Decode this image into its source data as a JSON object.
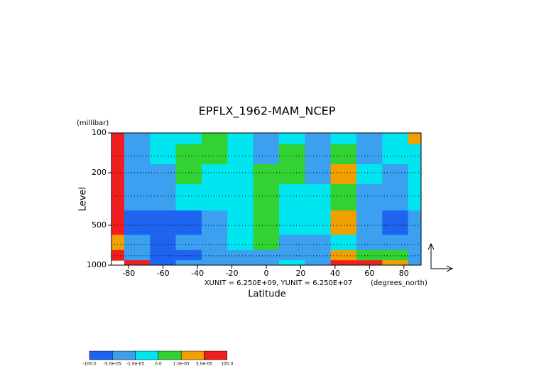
{
  "chart_data": {
    "type": "contour",
    "title": "EPFLX_1962-MAM_NCEP",
    "x_label": "Latitude",
    "y_label": "Level",
    "y_unit": "(millibar)",
    "x_unit": "(degrees_north)",
    "annotation": "XUNIT = 6.250E+09, YUNIT = 6.250E+07",
    "x": [
      -90,
      -75,
      -60,
      -45,
      -30,
      -15,
      0,
      15,
      30,
      45,
      60,
      75,
      90
    ],
    "levels": [
      100,
      150,
      200,
      300,
      500,
      700,
      850,
      1000
    ],
    "field": [
      [
        8e-05,
        -3e-05,
        -5e-06,
        -5e-06,
        5e-06,
        -5e-06,
        -3e-05,
        -5e-06,
        -3e-05,
        -5e-06,
        -3e-05,
        -5e-06,
        3e-05
      ],
      [
        8e-05,
        -3e-05,
        -5e-06,
        5e-06,
        5e-06,
        -5e-06,
        -3e-05,
        5e-06,
        -3e-05,
        5e-06,
        -3e-05,
        -5e-06,
        -5e-06
      ],
      [
        8e-05,
        -3e-05,
        -3e-05,
        5e-06,
        -5e-06,
        -5e-06,
        5e-06,
        5e-06,
        -3e-05,
        3e-05,
        -5e-06,
        -3e-05,
        -5e-06
      ],
      [
        8e-05,
        -3e-05,
        -3e-05,
        -5e-06,
        -5e-06,
        -5e-06,
        5e-06,
        -5e-06,
        -5e-06,
        5e-06,
        -3e-05,
        -3e-05,
        -5e-06
      ],
      [
        8e-05,
        -8e-05,
        -8e-05,
        -8e-05,
        -3e-05,
        -5e-06,
        5e-06,
        -5e-06,
        -5e-06,
        3e-05,
        -3e-05,
        -8e-05,
        -3e-05
      ],
      [
        3e-05,
        -3e-05,
        -8e-05,
        -3e-05,
        -3e-05,
        -5e-06,
        5e-06,
        -3e-05,
        -3e-05,
        -5e-06,
        -3e-05,
        -3e-05,
        -3e-05
      ],
      [
        8e-05,
        -3e-05,
        -8e-05,
        -8e-05,
        -3e-05,
        -3e-05,
        -3e-05,
        -3e-05,
        -3e-05,
        3e-05,
        5e-06,
        5e-06,
        -3e-05
      ],
      [
        null,
        8e-05,
        -8e-05,
        -3e-05,
        -3e-05,
        -3e-05,
        -3e-05,
        -5e-06,
        -3e-05,
        8e-05,
        8e-05,
        3e-05,
        -3e-05
      ]
    ],
    "xlim": [
      -90,
      90
    ],
    "xticks": [
      -80,
      -60,
      -40,
      -20,
      0,
      20,
      40,
      60,
      80
    ],
    "ylim": [
      1000,
      100
    ],
    "yticks": [
      100,
      200,
      500,
      1000
    ],
    "log_y": true,
    "colorbar": {
      "ticks": [
        {
          "value": -100,
          "label": "-100.0"
        },
        {
          "value": -5e-05,
          "label": "-5.0e-05"
        },
        {
          "value": -1e-05,
          "label": "-1.0e-05"
        },
        {
          "value": 0,
          "label": "0.0"
        },
        {
          "value": 1e-05,
          "label": "1.0e-05"
        },
        {
          "value": 5e-05,
          "label": "5.0e-05"
        },
        {
          "value": 100,
          "label": "100.0"
        }
      ],
      "colors": [
        "#1e64f0",
        "#3ca0f0",
        "#00e6f0",
        "#32d232",
        "#f0a000",
        "#f01e1e"
      ]
    }
  }
}
